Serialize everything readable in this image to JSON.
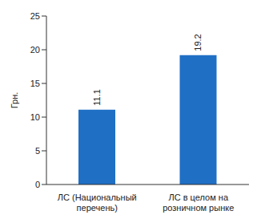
{
  "chart_data": {
    "type": "bar",
    "categories": [
      "ЛС (Национальный перечень)",
      "ЛС в целом на розничном рынке"
    ],
    "values": [
      11.1,
      19.2
    ],
    "color": "#1f6fc5",
    "ylabel": "Грн.",
    "ylim": [
      0,
      25
    ],
    "yticks": [
      0,
      5,
      10,
      15,
      20,
      25
    ],
    "grid": false,
    "data_labels": true
  }
}
